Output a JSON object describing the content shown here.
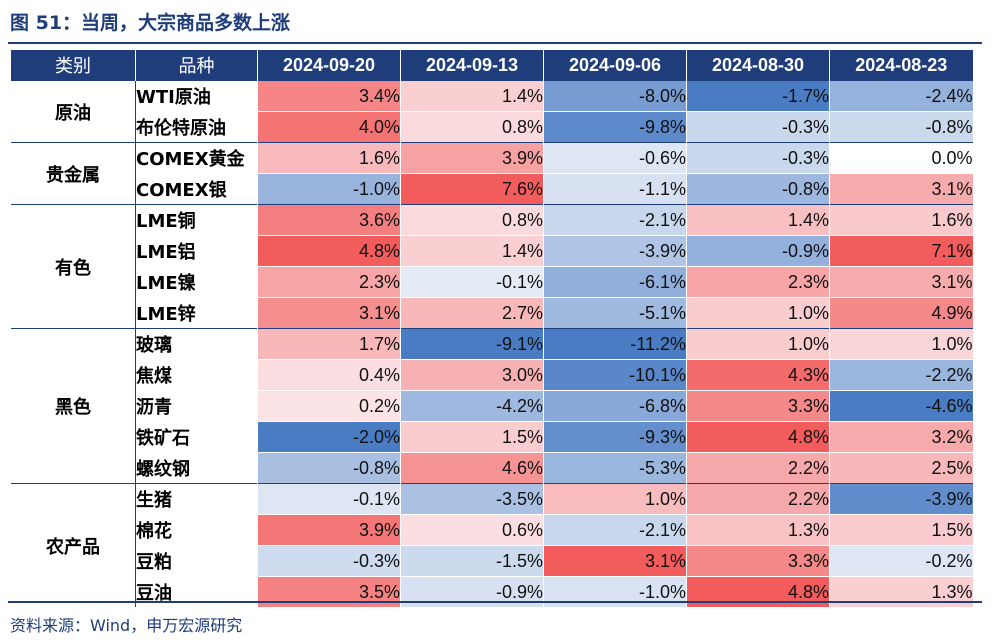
{
  "title": "图 51：当周，大宗商品多数上涨",
  "source": "资料来源：Wind，申万宏源研究",
  "colors": {
    "accent": "#1f3d7a",
    "positive": "#f25c5c",
    "negative": "#4a7cc4"
  },
  "chart_data": {
    "type": "table",
    "title": "图 51：当周，大宗商品多数上涨",
    "header": {
      "category": "类别",
      "name": "品种",
      "dates": [
        "2024-09-20",
        "2024-09-13",
        "2024-09-06",
        "2024-08-30",
        "2024-08-23"
      ]
    },
    "groups": [
      {
        "category": "原油",
        "rows": [
          {
            "name": "WTI原油",
            "values": [
              3.4,
              1.4,
              -8.0,
              -1.7,
              -2.4
            ]
          },
          {
            "name": "布伦特原油",
            "values": [
              4.0,
              0.8,
              -9.8,
              -0.3,
              -0.8
            ]
          }
        ]
      },
      {
        "category": "贵金属",
        "rows": [
          {
            "name": "COMEX黄金",
            "values": [
              1.6,
              3.9,
              -0.6,
              -0.3,
              0.0
            ]
          },
          {
            "name": "COMEX银",
            "values": [
              -1.0,
              7.6,
              -1.1,
              -0.8,
              3.1
            ]
          }
        ]
      },
      {
        "category": "有色",
        "rows": [
          {
            "name": "LME铜",
            "values": [
              3.6,
              0.8,
              -2.1,
              1.4,
              1.6
            ]
          },
          {
            "name": "LME铝",
            "values": [
              4.8,
              1.4,
              -3.9,
              -0.9,
              7.1
            ]
          },
          {
            "name": "LME镍",
            "values": [
              2.3,
              -0.1,
              -6.1,
              2.3,
              3.1
            ]
          },
          {
            "name": "LME锌",
            "values": [
              3.1,
              2.7,
              -5.1,
              1.0,
              4.9
            ]
          }
        ]
      },
      {
        "category": "黑色",
        "rows": [
          {
            "name": "玻璃",
            "values": [
              1.7,
              -9.1,
              -11.2,
              1.0,
              1.0
            ]
          },
          {
            "name": "焦煤",
            "values": [
              0.4,
              3.0,
              -10.1,
              4.3,
              -2.2
            ]
          },
          {
            "name": "沥青",
            "values": [
              0.2,
              -4.2,
              -6.8,
              3.3,
              -4.6
            ]
          },
          {
            "name": "铁矿石",
            "values": [
              -2.0,
              1.5,
              -9.3,
              4.8,
              3.2
            ]
          },
          {
            "name": "螺纹钢",
            "values": [
              -0.8,
              4.6,
              -5.3,
              2.2,
              2.5
            ]
          }
        ]
      },
      {
        "category": "农产品",
        "rows": [
          {
            "name": "生猪",
            "values": [
              -0.1,
              -3.5,
              1.0,
              2.2,
              -3.9
            ]
          },
          {
            "name": "棉花",
            "values": [
              3.9,
              0.6,
              -2.1,
              1.3,
              1.5
            ]
          },
          {
            "name": "豆粕",
            "values": [
              -0.3,
              -1.5,
              3.1,
              3.3,
              -0.2
            ]
          },
          {
            "name": "豆油",
            "values": [
              3.5,
              -0.9,
              -1.0,
              4.8,
              1.3
            ]
          }
        ]
      }
    ]
  }
}
